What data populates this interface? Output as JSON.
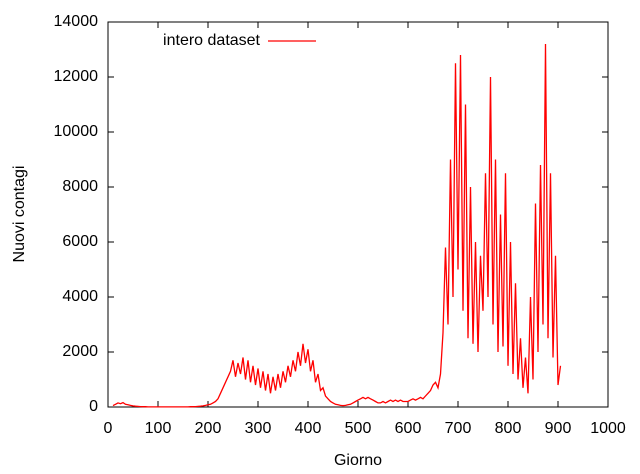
{
  "chart_data": {
    "type": "line",
    "xlabel": "Giorno",
    "ylabel": "Nuovi contagi",
    "xlim": [
      0,
      1000
    ],
    "xticks": [
      0,
      100,
      200,
      300,
      400,
      500,
      600,
      700,
      800,
      900,
      1000
    ],
    "ylim": [
      0,
      14000
    ],
    "yticks": [
      0,
      2000,
      4000,
      6000,
      8000,
      10000,
      12000,
      14000
    ],
    "legend": "top-left",
    "x": [
      10,
      15,
      20,
      25,
      30,
      35,
      40,
      45,
      50,
      55,
      60,
      65,
      70,
      75,
      80,
      85,
      90,
      95,
      100,
      105,
      110,
      115,
      120,
      125,
      130,
      135,
      140,
      145,
      150,
      155,
      160,
      165,
      170,
      175,
      180,
      185,
      190,
      195,
      200,
      205,
      210,
      215,
      220,
      225,
      230,
      235,
      240,
      245,
      250,
      255,
      260,
      265,
      270,
      275,
      280,
      285,
      290,
      295,
      300,
      305,
      310,
      315,
      320,
      325,
      330,
      335,
      340,
      345,
      350,
      355,
      360,
      365,
      370,
      375,
      380,
      385,
      390,
      395,
      400,
      405,
      410,
      415,
      420,
      425,
      430,
      435,
      440,
      445,
      450,
      455,
      460,
      465,
      470,
      475,
      480,
      485,
      490,
      495,
      500,
      505,
      510,
      515,
      520,
      525,
      530,
      535,
      540,
      545,
      550,
      555,
      560,
      565,
      570,
      575,
      580,
      585,
      590,
      595,
      600,
      605,
      610,
      615,
      620,
      625,
      630,
      635,
      640,
      645,
      650,
      655,
      660,
      665,
      670,
      675,
      680,
      685,
      690,
      695,
      700,
      705,
      710,
      715,
      720,
      725,
      730,
      735,
      740,
      745,
      750,
      755,
      760,
      765,
      770,
      775,
      780,
      785,
      790,
      795,
      800,
      805,
      810,
      815,
      820,
      825,
      830,
      835,
      840,
      845,
      850,
      855,
      860,
      865,
      870,
      875,
      880,
      885,
      890,
      895,
      900,
      905
    ],
    "series": [
      {
        "name": "intero dataset",
        "color": "#ff0000",
        "values": [
          50,
          100,
          150,
          120,
          160,
          100,
          80,
          60,
          40,
          30,
          20,
          15,
          10,
          10,
          5,
          5,
          5,
          5,
          5,
          5,
          5,
          5,
          5,
          5,
          5,
          5,
          5,
          5,
          5,
          5,
          5,
          10,
          10,
          15,
          20,
          30,
          40,
          60,
          80,
          100,
          150,
          200,
          300,
          500,
          700,
          900,
          1100,
          1300,
          1700,
          1100,
          1600,
          1200,
          1800,
          1000,
          1700,
          900,
          1500,
          800,
          1400,
          700,
          1300,
          600,
          1200,
          500,
          1100,
          600,
          1200,
          700,
          1300,
          900,
          1500,
          1100,
          1700,
          1300,
          2000,
          1500,
          2300,
          1600,
          2100,
          1300,
          1700,
          900,
          1200,
          600,
          700,
          400,
          300,
          200,
          150,
          100,
          80,
          60,
          50,
          60,
          80,
          100,
          150,
          200,
          250,
          300,
          350,
          300,
          350,
          300,
          250,
          200,
          150,
          150,
          200,
          150,
          200,
          250,
          200,
          250,
          200,
          250,
          200,
          200,
          200,
          250,
          300,
          250,
          300,
          350,
          300,
          400,
          500,
          600,
          800,
          900,
          700,
          1200,
          2700,
          5800,
          3000,
          9000,
          4000,
          12500,
          5000,
          12800,
          3500,
          11000,
          2500,
          8000,
          2300,
          6000,
          2000,
          5500,
          3500,
          8500,
          4000,
          12000,
          3000,
          9000,
          2000,
          7000,
          2200,
          8500,
          1500,
          6000,
          1200,
          4500,
          1000,
          2500,
          700,
          1800,
          500,
          4000,
          1000,
          7400,
          2000,
          8800,
          3000,
          13200,
          2500,
          8500,
          1800,
          5500,
          800,
          1500
        ]
      }
    ]
  }
}
